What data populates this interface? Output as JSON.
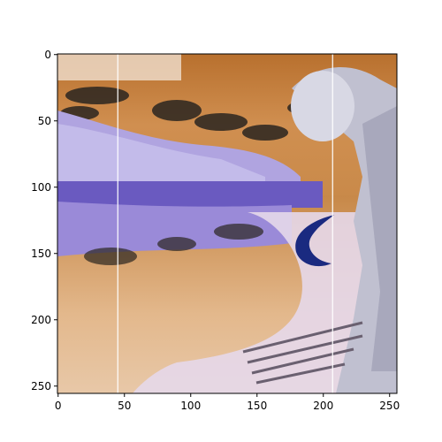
{
  "figure": {
    "description_hint": "matplotlib imshow of a color-inverted landscape photo with a lake, clouds, and rocky structures",
    "x_axis": {
      "ticks": [
        "0",
        "50",
        "100",
        "150",
        "200",
        "250"
      ]
    },
    "y_axis": {
      "ticks": [
        "0",
        "50",
        "100",
        "150",
        "200",
        "250"
      ]
    }
  },
  "chart_data": {
    "type": "image",
    "xlim": [
      0,
      255
    ],
    "ylim": [
      255,
      0
    ],
    "x_ticks": [
      0,
      50,
      100,
      150,
      200,
      250
    ],
    "y_ticks": [
      0,
      50,
      100,
      150,
      200,
      250
    ],
    "overlay_vertical_lines_at_x": [
      45,
      207
    ],
    "colors": {
      "sky": "#c98a4a",
      "sky_light": "#e8b98a",
      "clouds": "#2a2520",
      "water": "#9a8ad8",
      "water_dark": "#6a5ac0",
      "foliage": "#c8c0e8",
      "rock": "#c0c0d0",
      "arc": "#1a2a80",
      "overlay_line": "#ffffff"
    }
  }
}
